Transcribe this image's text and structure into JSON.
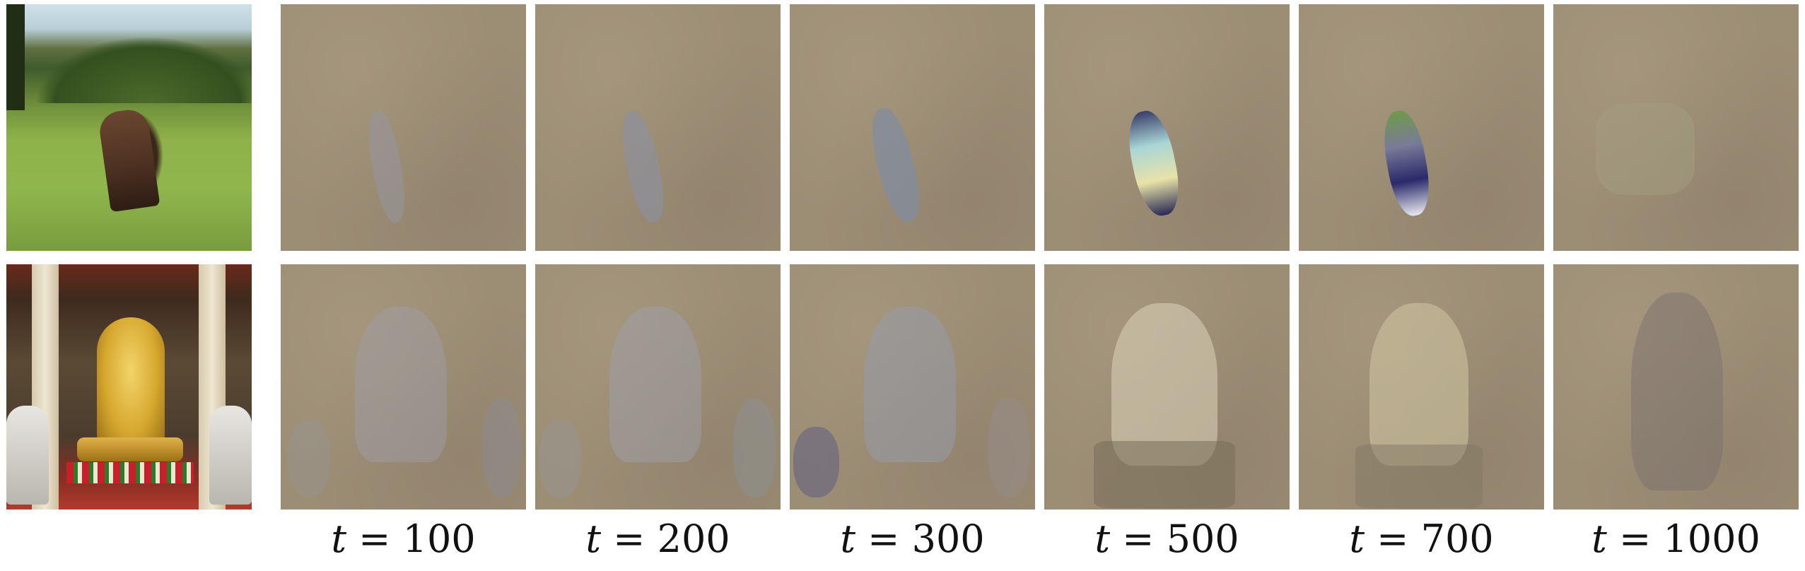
{
  "figure": {
    "labels": [
      {
        "var": "t",
        "eq": " = ",
        "val": "100"
      },
      {
        "var": "t",
        "eq": " = ",
        "val": "200"
      },
      {
        "var": "t",
        "eq": " = ",
        "val": "300"
      },
      {
        "var": "t",
        "eq": " = ",
        "val": "500"
      },
      {
        "var": "t",
        "eq": " = ",
        "val": "700"
      },
      {
        "var": "t",
        "eq": " = ",
        "val": "1000"
      }
    ]
  }
}
